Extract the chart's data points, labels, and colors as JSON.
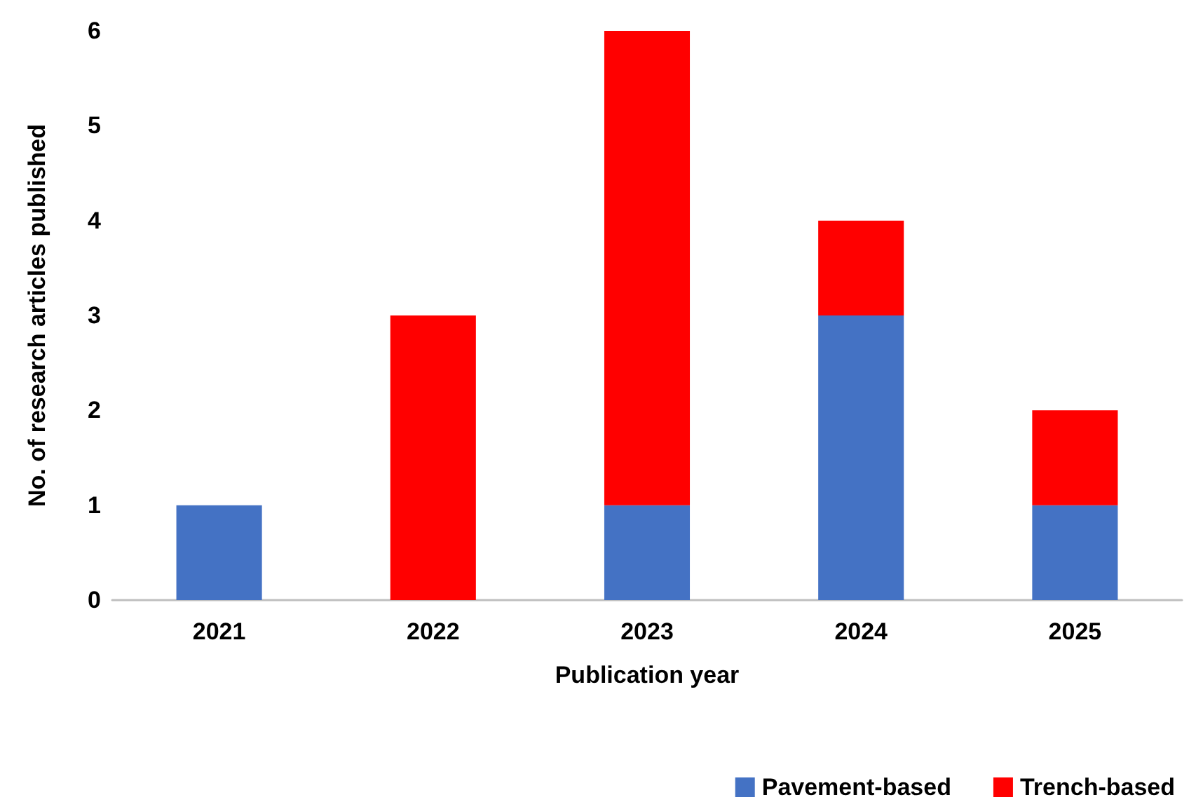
{
  "chart_data": {
    "type": "bar",
    "stacked": true,
    "xlabel": "Publication year",
    "ylabel": "No. of research articles published",
    "categories": [
      "2021",
      "2022",
      "2023",
      "2024",
      "2025"
    ],
    "series": [
      {
        "name": "Pavement-based",
        "color": "#4472c4",
        "values": [
          1,
          0,
          1,
          3,
          1
        ]
      },
      {
        "name": "Trench-based",
        "color": "#ff0000",
        "values": [
          0,
          3,
          5,
          1,
          1
        ]
      }
    ],
    "ylim": [
      0,
      6
    ],
    "yticks": [
      0,
      1,
      2,
      3,
      4,
      5,
      6
    ],
    "grid": false,
    "legend": "bottom right"
  }
}
